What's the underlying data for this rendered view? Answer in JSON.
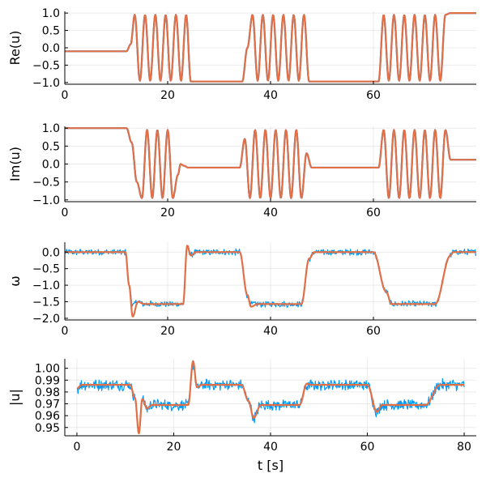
{
  "chart_data": [
    {
      "type": "line",
      "ylabel": "Re(u)",
      "xlabel": "",
      "xlim": [
        0,
        80
      ],
      "ylim": [
        -1.05,
        1.05
      ],
      "xticks": [
        0,
        20,
        40,
        60
      ],
      "yticks": [
        -1.0,
        -0.5,
        0.0,
        0.5,
        1.0
      ],
      "ytick_labels": [
        "−1.0",
        "−0.5",
        "0.0",
        "0.5",
        "1.0"
      ],
      "grid": true,
      "legend": "none",
      "series": [
        {
          "color": "#009AFA",
          "noise": 0.0,
          "x": [
            0,
            12,
            12.8,
            13.6,
            14.6,
            15.6,
            16.6,
            17.6,
            18.6,
            19.6,
            20.6,
            21.6,
            22.6,
            23.6,
            24.5,
            34.5,
            35.5,
            36.5,
            37.5,
            38.5,
            39.5,
            40.5,
            41.5,
            42.5,
            43.5,
            44.5,
            45.5,
            46.5,
            47.5,
            48.5,
            61,
            62,
            63,
            64,
            65,
            66,
            67,
            68,
            69,
            70,
            71,
            72,
            73,
            74,
            75,
            80
          ],
          "y": [
            -0.1,
            -0.1,
            0.1,
            0.95,
            -0.95,
            0.95,
            -0.95,
            0.95,
            -0.95,
            0.95,
            -0.95,
            0.95,
            -0.95,
            0.95,
            -0.97,
            -0.97,
            0.0,
            0.95,
            -0.95,
            0.95,
            -0.95,
            0.95,
            -0.95,
            0.95,
            -0.95,
            0.95,
            -0.95,
            0.95,
            -0.97,
            -0.97,
            -0.97,
            0.95,
            -0.95,
            0.95,
            -0.95,
            0.95,
            -0.95,
            0.95,
            -0.95,
            0.95,
            -0.95,
            0.95,
            -0.95,
            0.95,
            1.0,
            1.0
          ]
        },
        {
          "color": "#E26F46",
          "noise": 0.0,
          "x": [
            0,
            12,
            12.8,
            13.6,
            14.6,
            15.6,
            16.6,
            17.6,
            18.6,
            19.6,
            20.6,
            21.6,
            22.6,
            23.6,
            24.5,
            34.5,
            35.5,
            36.5,
            37.5,
            38.5,
            39.5,
            40.5,
            41.5,
            42.5,
            43.5,
            44.5,
            45.5,
            46.5,
            47.5,
            48.5,
            61,
            62,
            63,
            64,
            65,
            66,
            67,
            68,
            69,
            70,
            71,
            72,
            73,
            74,
            75,
            80
          ],
          "y": [
            -0.1,
            -0.1,
            0.1,
            0.95,
            -0.95,
            0.95,
            -0.95,
            0.95,
            -0.95,
            0.95,
            -0.95,
            0.95,
            -0.95,
            0.95,
            -0.97,
            -0.97,
            0.0,
            0.95,
            -0.95,
            0.95,
            -0.95,
            0.95,
            -0.95,
            0.95,
            -0.95,
            0.95,
            -0.95,
            0.95,
            -0.97,
            -0.97,
            -0.97,
            0.95,
            -0.95,
            0.95,
            -0.95,
            0.95,
            -0.95,
            0.95,
            -0.95,
            0.95,
            -0.95,
            0.95,
            -0.95,
            0.95,
            1.0,
            1.0
          ]
        }
      ]
    },
    {
      "type": "line",
      "ylabel": "Im(u)",
      "xlabel": "",
      "xlim": [
        0,
        80
      ],
      "ylim": [
        -1.05,
        1.05
      ],
      "xticks": [
        0,
        20,
        40,
        60
      ],
      "yticks": [
        -1.0,
        -0.5,
        0.0,
        0.5,
        1.0
      ],
      "ytick_labels": [
        "−1.0",
        "−0.5",
        "0.0",
        "0.5",
        "1.0"
      ],
      "grid": true,
      "legend": "none",
      "series": [
        {
          "color": "#009AFA",
          "noise": 0.0,
          "x": [
            0,
            12,
            13,
            14,
            15,
            16,
            17,
            18,
            19,
            20,
            21,
            22,
            22.5,
            23.2,
            24,
            34,
            35,
            36,
            37,
            38,
            39,
            40,
            41,
            42,
            43,
            44,
            45,
            46,
            47,
            48,
            61,
            62,
            63,
            64,
            65,
            66,
            67,
            68,
            69,
            70,
            71,
            72,
            73,
            74,
            75,
            80
          ],
          "y": [
            1.0,
            1.0,
            0.6,
            -0.5,
            -0.95,
            0.95,
            -0.95,
            0.95,
            -0.95,
            0.95,
            -0.95,
            -0.3,
            0.0,
            -0.05,
            -0.1,
            -0.1,
            0.7,
            -0.95,
            0.95,
            -0.95,
            0.95,
            -0.95,
            0.95,
            -0.95,
            0.95,
            -0.95,
            0.95,
            -0.95,
            0.3,
            -0.1,
            -0.1,
            0.95,
            -0.95,
            0.95,
            -0.95,
            0.95,
            -0.95,
            0.95,
            -0.95,
            0.95,
            -0.95,
            0.95,
            -0.95,
            0.95,
            0.12,
            0.12
          ]
        },
        {
          "color": "#E26F46",
          "noise": 0.0,
          "x": [
            0,
            12,
            13,
            14,
            15,
            16,
            17,
            18,
            19,
            20,
            21,
            22,
            22.5,
            23.2,
            24,
            34,
            35,
            36,
            37,
            38,
            39,
            40,
            41,
            42,
            43,
            44,
            45,
            46,
            47,
            48,
            61,
            62,
            63,
            64,
            65,
            66,
            67,
            68,
            69,
            70,
            71,
            72,
            73,
            74,
            75,
            80
          ],
          "y": [
            1.0,
            1.0,
            0.6,
            -0.5,
            -0.95,
            0.95,
            -0.95,
            0.95,
            -0.95,
            0.95,
            -0.95,
            -0.3,
            0.0,
            -0.05,
            -0.1,
            -0.1,
            0.7,
            -0.95,
            0.95,
            -0.95,
            0.95,
            -0.95,
            0.95,
            -0.95,
            0.95,
            -0.95,
            0.95,
            -0.95,
            0.3,
            -0.1,
            -0.1,
            0.95,
            -0.95,
            0.95,
            -0.95,
            0.95,
            -0.95,
            0.95,
            -0.95,
            0.95,
            -0.95,
            0.95,
            -0.95,
            0.95,
            0.12,
            0.12
          ]
        }
      ]
    },
    {
      "type": "line",
      "ylabel": "ω",
      "xlabel": "",
      "xlim": [
        0,
        80
      ],
      "ylim": [
        -2.05,
        0.3
      ],
      "xticks": [
        0,
        20,
        40,
        60
      ],
      "yticks": [
        -2.0,
        -1.5,
        -1.0,
        -0.5,
        0.0
      ],
      "ytick_labels": [
        "−2.0",
        "−1.5",
        "−1.0",
        "−0.5",
        "0.0"
      ],
      "grid": true,
      "legend": "none",
      "series": [
        {
          "color": "#009AFA",
          "noise": 0.08,
          "x": [
            0,
            11.8,
            12.5,
            13.2,
            14.2,
            15.5,
            23,
            23.8,
            24.5,
            25.5,
            34,
            35.5,
            36.2,
            37.5,
            46,
            47.5,
            48.5,
            60,
            62.5,
            63.5,
            72,
            75,
            75.5,
            80
          ],
          "y": [
            0.0,
            0.0,
            -1.0,
            -1.6,
            -1.5,
            -1.57,
            -1.57,
            0.15,
            -0.1,
            0.0,
            0.0,
            -1.3,
            -1.57,
            -1.57,
            -1.57,
            -0.2,
            0.0,
            0.0,
            -1.2,
            -1.57,
            -1.57,
            -0.1,
            0.0,
            0.0
          ]
        },
        {
          "color": "#E26F46",
          "noise": 0.0,
          "x": [
            0,
            11.8,
            12.5,
            13.2,
            14.2,
            15.5,
            23,
            23.8,
            24.5,
            25.5,
            34,
            35.5,
            36.2,
            37.5,
            46,
            47.5,
            48.5,
            60,
            62.5,
            63.5,
            72,
            75,
            75.5,
            80
          ],
          "y": [
            0.0,
            0.0,
            -1.0,
            -1.95,
            -1.5,
            -1.57,
            -1.57,
            0.2,
            -0.1,
            0.0,
            0.0,
            -1.3,
            -1.65,
            -1.57,
            -1.57,
            -0.2,
            0.0,
            0.0,
            -1.2,
            -1.57,
            -1.57,
            -0.1,
            0.0,
            0.0
          ]
        }
      ]
    },
    {
      "type": "line",
      "ylabel": "|u|",
      "xlabel": "t [s]",
      "xlim": [
        -2.5,
        82.5
      ],
      "ylim": [
        0.943,
        1.008
      ],
      "xticks": [
        0,
        20,
        40,
        60,
        80
      ],
      "yticks": [
        0.95,
        0.96,
        0.97,
        0.98,
        0.99,
        1.0
      ],
      "ytick_labels": [
        "0.95",
        "0.96",
        "0.97",
        "0.98",
        "0.99",
        "1.00"
      ],
      "grid": true,
      "legend": "none",
      "series": [
        {
          "color": "#009AFA",
          "noise": 0.004,
          "x": [
            0,
            1,
            11,
            12,
            12.8,
            13.5,
            14.5,
            15.5,
            23,
            24,
            24.8,
            25.8,
            34,
            35.5,
            36.5,
            38,
            46,
            47.5,
            48.5,
            60,
            62,
            63,
            72,
            75,
            80
          ],
          "y": [
            0.983,
            0.986,
            0.986,
            0.975,
            0.946,
            0.974,
            0.966,
            0.969,
            0.969,
            1.003,
            0.984,
            0.986,
            0.986,
            0.972,
            0.958,
            0.969,
            0.969,
            0.985,
            0.986,
            0.986,
            0.963,
            0.969,
            0.969,
            0.986,
            0.986
          ]
        },
        {
          "color": "#E26F46",
          "noise": 0.0,
          "x": [
            0,
            1,
            11,
            12,
            12.8,
            13.5,
            14.5,
            15.5,
            23,
            24,
            24.8,
            25.8,
            34,
            35.5,
            36.5,
            38,
            46,
            47.5,
            48.5,
            60,
            62,
            63,
            72,
            75,
            80
          ],
          "y": [
            0.983,
            0.986,
            0.986,
            0.975,
            0.945,
            0.974,
            0.966,
            0.969,
            0.969,
            1.006,
            0.984,
            0.986,
            0.986,
            0.972,
            0.958,
            0.969,
            0.969,
            0.987,
            0.986,
            0.986,
            0.963,
            0.969,
            0.969,
            0.986,
            0.986
          ]
        }
      ]
    }
  ]
}
